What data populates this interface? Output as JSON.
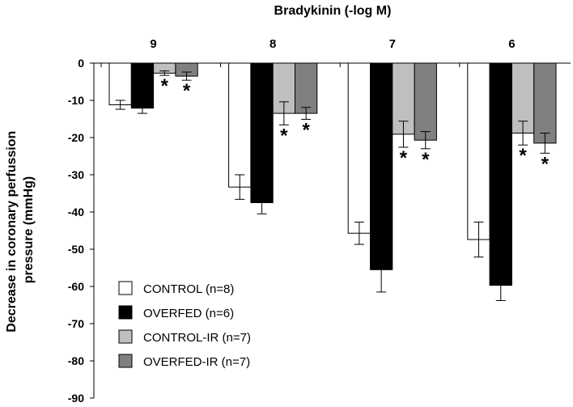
{
  "chart_data": {
    "type": "bar",
    "title": "Bradykinin (-log M)",
    "xlabel": "Bradykinin (-log M)",
    "ylabel": "Decrease in coronary perfussion pressure (mmHg)",
    "ylim": [
      -90,
      0
    ],
    "y_ticks": [
      "0",
      "-10",
      "-20",
      "-30",
      "-40",
      "-50",
      "-60",
      "-70",
      "-80",
      "-90"
    ],
    "x_axis_position": "top",
    "categories": [
      "9",
      "8",
      "7",
      "6"
    ],
    "series": [
      {
        "name": "CONTROL (n=8)",
        "color": "#ffffff",
        "values": [
          -11.2,
          -33.3,
          -45.7,
          -47.4
        ],
        "errors": [
          1.2,
          3.3,
          3.0,
          4.7
        ],
        "significant": [
          false,
          false,
          false,
          false
        ]
      },
      {
        "name": "OVERFED (n=6)",
        "color": "#000000",
        "values": [
          -12.1,
          -37.5,
          -55.5,
          -59.7
        ],
        "errors": [
          1.4,
          3.0,
          6.0,
          4.1
        ],
        "significant": [
          false,
          false,
          false,
          false
        ]
      },
      {
        "name": "CONTROL-IR (n=7)",
        "color": "#bfbfbf",
        "values": [
          -2.7,
          -13.5,
          -19.1,
          -18.8
        ],
        "errors": [
          0.6,
          3.1,
          3.5,
          3.2
        ],
        "significant": [
          true,
          true,
          true,
          true
        ]
      },
      {
        "name": "OVERFED-IR (n=7)",
        "color": "#808080",
        "values": [
          -3.5,
          -13.5,
          -20.7,
          -21.5
        ],
        "errors": [
          1.1,
          1.6,
          2.3,
          2.7
        ],
        "significant": [
          true,
          true,
          true,
          true
        ]
      }
    ],
    "significance_marker": "*",
    "grid": false,
    "legend_position": "bottom-left"
  }
}
